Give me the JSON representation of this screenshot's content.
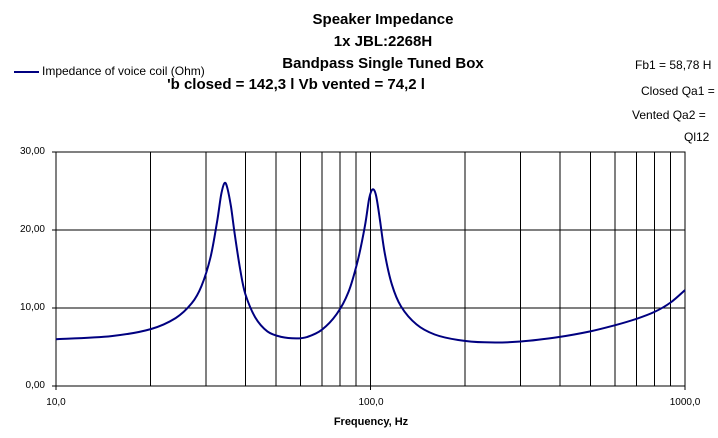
{
  "chart_data": {
    "type": "line",
    "title": "Speaker Impedance",
    "subtitle_lines": [
      "1x JBL:2268H",
      "Bandpass Single Tuned Box",
      "'b closed = 142,3 l    Vb vented = 74,2 l"
    ],
    "side_annotations": [
      "Fb1 = 58,78 H",
      "Closed Qa1 =",
      "Vented Qa2 =",
      "Ql12"
    ],
    "xlabel": "Frequency, Hz",
    "ylabel": "",
    "x_scale": "log",
    "xlim": [
      10,
      1000
    ],
    "ylim": [
      0,
      30
    ],
    "x_tick_labels": [
      "10,0",
      "100,0",
      "1000,0"
    ],
    "y_tick_labels": [
      "0,00",
      "10,00",
      "20,00",
      "30,00"
    ],
    "grid": true,
    "legend_position": "top-left",
    "series": [
      {
        "name": "Impedance of voice coil (Ohm)",
        "color": "#000080",
        "points": [
          [
            10,
            6.0
          ],
          [
            15,
            6.4
          ],
          [
            20,
            7.3
          ],
          [
            24,
            8.7
          ],
          [
            27,
            10.6
          ],
          [
            29,
            12.8
          ],
          [
            31,
            16.5
          ],
          [
            32.5,
            21.0
          ],
          [
            33.5,
            24.5
          ],
          [
            34.3,
            26.0
          ],
          [
            35,
            25.5
          ],
          [
            36,
            23.0
          ],
          [
            37,
            19.5
          ],
          [
            38.5,
            15.0
          ],
          [
            40,
            11.8
          ],
          [
            43,
            8.8
          ],
          [
            47,
            7.0
          ],
          [
            52,
            6.3
          ],
          [
            58,
            6.1
          ],
          [
            63,
            6.3
          ],
          [
            70,
            7.2
          ],
          [
            78,
            9.2
          ],
          [
            85,
            12.0
          ],
          [
            91,
            16.0
          ],
          [
            96,
            20.5
          ],
          [
            99,
            24.0
          ],
          [
            101.5,
            25.2
          ],
          [
            104,
            24.5
          ],
          [
            107,
            21.5
          ],
          [
            111,
            17.0
          ],
          [
            117,
            13.0
          ],
          [
            125,
            10.2
          ],
          [
            140,
            7.9
          ],
          [
            160,
            6.6
          ],
          [
            190,
            5.9
          ],
          [
            230,
            5.6
          ],
          [
            300,
            5.7
          ],
          [
            400,
            6.3
          ],
          [
            500,
            7.0
          ],
          [
            600,
            7.8
          ],
          [
            700,
            8.6
          ],
          [
            800,
            9.5
          ],
          [
            900,
            10.7
          ],
          [
            1000,
            12.3
          ]
        ]
      }
    ]
  },
  "colors": {
    "axis": "#000000",
    "grid": "#000000",
    "curve": "#000080",
    "plot_background": "#ffffff"
  }
}
